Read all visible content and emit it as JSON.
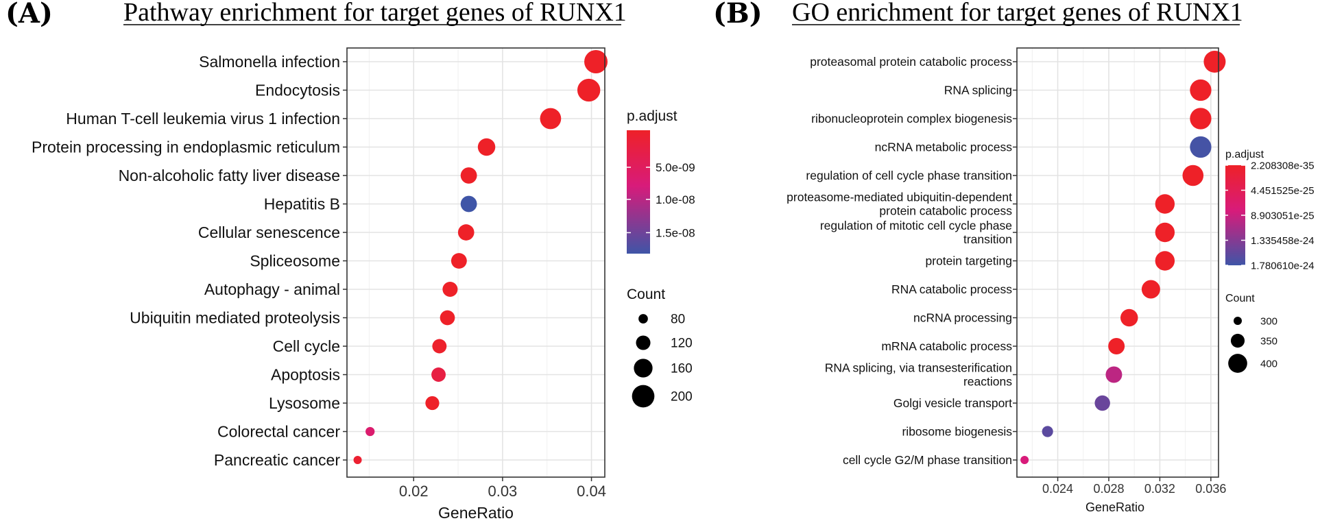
{
  "colors": {
    "high": "#ee2128",
    "mid": "#d81b7a",
    "low": "#3f55a7"
  },
  "chart_data": [
    {
      "type": "scatter",
      "panel_label": "(A)",
      "title": "Pathway enrichment for target genes of RUNX1",
      "xlabel": "GeneRatio",
      "ylabel": "",
      "xlim": [
        0.0125,
        0.0415
      ],
      "xticks": [
        0.02,
        0.03,
        0.04
      ],
      "xtick_labels": [
        "0.02",
        "0.03",
        "0.04"
      ],
      "categories": [
        "Salmonella infection",
        "Endocytosis",
        "Human T-cell leukemia virus 1 infection",
        "Protein processing in endoplasmic reticulum",
        "Non-alcoholic fatty liver disease",
        "Hepatitis B",
        "Cellular senescence",
        "Spliceosome",
        "Autophagy - animal",
        "Ubiquitin mediated proteolysis",
        "Cell cycle",
        "Apoptosis",
        "Lysosome",
        "Colorectal cancer",
        "Pancreatic cancer"
      ],
      "x": [
        0.0405,
        0.0397,
        0.0354,
        0.0282,
        0.0262,
        0.0262,
        0.0259,
        0.0251,
        0.0241,
        0.0238,
        0.0229,
        0.0228,
        0.0221,
        0.0151,
        0.0137
      ],
      "count": [
        210,
        205,
        185,
        148,
        137,
        137,
        136,
        131,
        126,
        124,
        119,
        119,
        115,
        78,
        72
      ],
      "color_value": [
        0.0,
        0.0,
        0.0,
        0.0,
        0.0,
        1.0,
        0.0,
        0.0,
        0.0,
        0.0,
        0.02,
        0.15,
        0.0,
        0.38,
        0.05
      ],
      "color_legend": {
        "title": "p.adjust",
        "ticks": [
          "5.0e-09",
          "1.0e-08",
          "1.5e-08"
        ]
      },
      "size_legend": {
        "title": "Count",
        "values": [
          80,
          120,
          160,
          200
        ],
        "labels": [
          "80",
          "120",
          "160",
          "200"
        ]
      }
    },
    {
      "type": "scatter",
      "panel_label": "(B)",
      "title": "GO enrichment for target genes of RUNX1",
      "xlabel": "GeneRatio",
      "ylabel": "",
      "xlim": [
        0.0208,
        0.0366
      ],
      "xticks": [
        0.024,
        0.028,
        0.032,
        0.036
      ],
      "xtick_labels": [
        "0.024",
        "0.028",
        "0.032",
        "0.036"
      ],
      "categories": [
        [
          "proteasomal protein catabolic process"
        ],
        [
          "RNA splicing"
        ],
        [
          "ribonucleoprotein complex biogenesis"
        ],
        [
          "ncRNA metabolic process"
        ],
        [
          "regulation of cell cycle phase transition"
        ],
        [
          "proteasome-mediated ubiquitin-dependent",
          "protein catabolic process"
        ],
        [
          "regulation of mitotic cell cycle phase",
          "transition"
        ],
        [
          "protein targeting"
        ],
        [
          "RNA catabolic process"
        ],
        [
          "ncRNA processing"
        ],
        [
          "mRNA catabolic process"
        ],
        [
          "RNA splicing, via transesterification",
          "reactions"
        ],
        [
          "Golgi vesicle transport"
        ],
        [
          "ribosome biogenesis"
        ],
        [
          "cell cycle G2/M phase transition"
        ]
      ],
      "x": [
        0.0363,
        0.0352,
        0.0352,
        0.0352,
        0.0346,
        0.0324,
        0.0324,
        0.0324,
        0.0313,
        0.0296,
        0.0286,
        0.0284,
        0.0275,
        0.0232,
        0.0214
      ],
      "count": [
        430,
        425,
        425,
        425,
        420,
        405,
        405,
        405,
        395,
        385,
        375,
        375,
        365,
        325,
        300
      ],
      "color_value": [
        0.0,
        0.0,
        0.0,
        0.98,
        0.0,
        0.0,
        0.0,
        0.0,
        0.0,
        0.0,
        0.0,
        0.55,
        0.85,
        0.9,
        0.45
      ],
      "color_legend": {
        "title": "p.adjust",
        "ticks": [
          "2.208308e-35",
          "4.451525e-25",
          "8.903051e-25",
          "1.335458e-24",
          "1.780610e-24"
        ]
      },
      "size_legend": {
        "title": "Count",
        "values": [
          300,
          350,
          400
        ],
        "labels": [
          "300",
          "350",
          "400"
        ]
      }
    }
  ]
}
